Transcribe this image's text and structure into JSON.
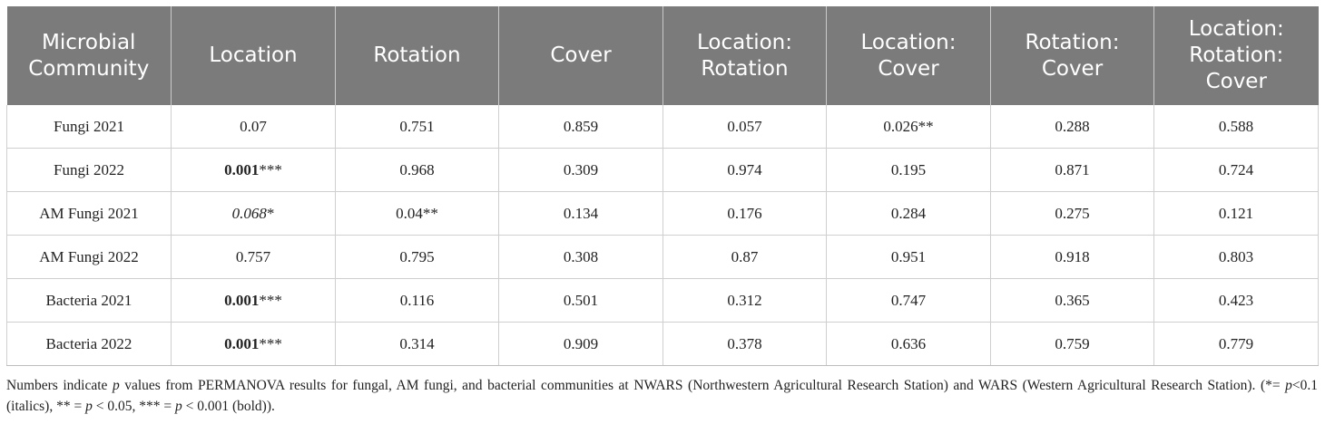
{
  "table": {
    "headers": [
      {
        "lines": [
          "Microbial",
          "Community"
        ]
      },
      {
        "lines": [
          "Location"
        ]
      },
      {
        "lines": [
          "Rotation"
        ]
      },
      {
        "lines": [
          "Cover"
        ]
      },
      {
        "lines": [
          "Location:",
          "Rotation"
        ]
      },
      {
        "lines": [
          "Location:",
          "Cover"
        ]
      },
      {
        "lines": [
          "Rotation:",
          "Cover"
        ]
      },
      {
        "lines": [
          "Location:",
          "Rotation:",
          "Cover"
        ]
      }
    ],
    "rows": [
      {
        "community": "Fungi 2021",
        "cells": [
          {
            "value": "0.07",
            "suffix": "",
            "style": ""
          },
          {
            "value": "0.751",
            "suffix": "",
            "style": ""
          },
          {
            "value": "0.859",
            "suffix": "",
            "style": ""
          },
          {
            "value": "0.057",
            "suffix": "",
            "style": ""
          },
          {
            "value": "0.026",
            "suffix": "**",
            "style": ""
          },
          {
            "value": "0.288",
            "suffix": "",
            "style": ""
          },
          {
            "value": "0.588",
            "suffix": "",
            "style": ""
          }
        ]
      },
      {
        "community": "Fungi 2022",
        "cells": [
          {
            "value": "0.001",
            "suffix": "***",
            "style": "bold"
          },
          {
            "value": "0.968",
            "suffix": "",
            "style": ""
          },
          {
            "value": "0.309",
            "suffix": "",
            "style": ""
          },
          {
            "value": "0.974",
            "suffix": "",
            "style": ""
          },
          {
            "value": "0.195",
            "suffix": "",
            "style": ""
          },
          {
            "value": "0.871",
            "suffix": "",
            "style": ""
          },
          {
            "value": "0.724",
            "suffix": "",
            "style": ""
          }
        ]
      },
      {
        "community": "AM Fungi 2021",
        "cells": [
          {
            "value": "0.068",
            "suffix": "*",
            "style": "italic"
          },
          {
            "value": "0.04",
            "suffix": "**",
            "style": ""
          },
          {
            "value": "0.134",
            "suffix": "",
            "style": ""
          },
          {
            "value": "0.176",
            "suffix": "",
            "style": ""
          },
          {
            "value": "0.284",
            "suffix": "",
            "style": ""
          },
          {
            "value": "0.275",
            "suffix": "",
            "style": ""
          },
          {
            "value": "0.121",
            "suffix": "",
            "style": ""
          }
        ]
      },
      {
        "community": "AM Fungi 2022",
        "cells": [
          {
            "value": "0.757",
            "suffix": "",
            "style": ""
          },
          {
            "value": "0.795",
            "suffix": "",
            "style": ""
          },
          {
            "value": "0.308",
            "suffix": "",
            "style": ""
          },
          {
            "value": "0.87",
            "suffix": "",
            "style": ""
          },
          {
            "value": "0.951",
            "suffix": "",
            "style": ""
          },
          {
            "value": "0.918",
            "suffix": "",
            "style": ""
          },
          {
            "value": "0.803",
            "suffix": "",
            "style": ""
          }
        ]
      },
      {
        "community": "Bacteria 2021",
        "cells": [
          {
            "value": "0.001",
            "suffix": "***",
            "style": "bold"
          },
          {
            "value": "0.116",
            "suffix": "",
            "style": ""
          },
          {
            "value": "0.501",
            "suffix": "",
            "style": ""
          },
          {
            "value": "0.312",
            "suffix": "",
            "style": ""
          },
          {
            "value": "0.747",
            "suffix": "",
            "style": ""
          },
          {
            "value": "0.365",
            "suffix": "",
            "style": ""
          },
          {
            "value": "0.423",
            "suffix": "",
            "style": ""
          }
        ]
      },
      {
        "community": "Bacteria 2022",
        "cells": [
          {
            "value": "0.001",
            "suffix": "***",
            "style": "bold"
          },
          {
            "value": "0.314",
            "suffix": "",
            "style": ""
          },
          {
            "value": "0.909",
            "suffix": "",
            "style": ""
          },
          {
            "value": "0.378",
            "suffix": "",
            "style": ""
          },
          {
            "value": "0.636",
            "suffix": "",
            "style": ""
          },
          {
            "value": "0.759",
            "suffix": "",
            "style": ""
          },
          {
            "value": "0.779",
            "suffix": "",
            "style": ""
          }
        ]
      }
    ]
  },
  "footnote": {
    "part1": "Numbers indicate ",
    "p_symbol": "p",
    "part2": " values from PERMANOVA results for fungal, AM fungi, and bacterial communities at NWARS (Northwestern Agricultural Research Station) and WARS (Western Agricultural Research Station). (*= ",
    "part3": "<0.1 (italics), ** = ",
    "part4": " < 0.05, *** = ",
    "part5": " < 0.001 (bold))."
  },
  "colors": {
    "header_bg": "#7b7b7b",
    "header_text": "#ffffff",
    "grid": "#cfcfcf"
  }
}
